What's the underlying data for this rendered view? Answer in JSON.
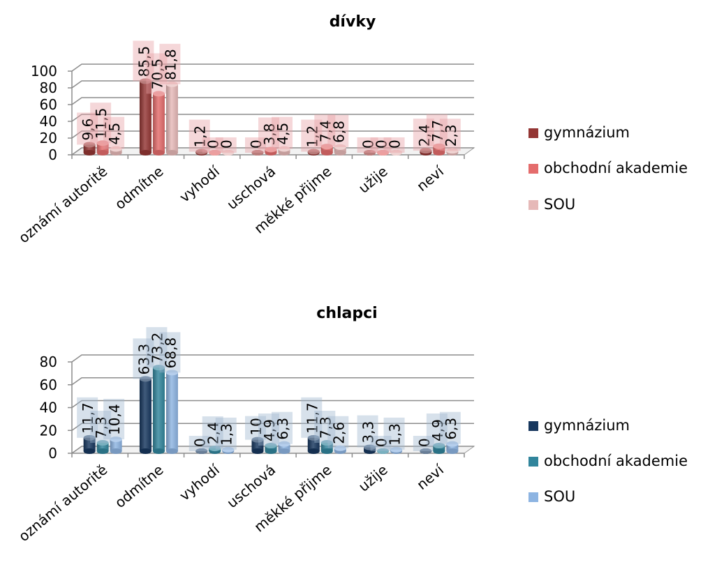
{
  "chart_data": [
    {
      "type": "bar",
      "title": "dívky",
      "categories": [
        "oznámí autoritě",
        "odmítne",
        "vyhodí",
        "uschová",
        "měkké přijme",
        "užije",
        "neví"
      ],
      "series": [
        {
          "name": "gymnázium",
          "values": [
            9.6,
            85.5,
            1.2,
            0,
            1.2,
            0,
            2.4
          ],
          "labels": [
            "9,6",
            "85,5",
            "1,2",
            "0",
            "1,2",
            "0",
            "2,4"
          ],
          "color": "#943634"
        },
        {
          "name": "obchodní akademie",
          "values": [
            11.5,
            70.5,
            0,
            3.8,
            7.4,
            0,
            7.7
          ],
          "labels": [
            "11,5",
            "70,5",
            "0",
            "3,8",
            "7,4",
            "0",
            "7,7"
          ],
          "color": "#E46C6C"
        },
        {
          "name": "SOU",
          "values": [
            4.5,
            81.8,
            0,
            4.5,
            6.8,
            0,
            2.3
          ],
          "labels": [
            "4,5",
            "81,8",
            "0",
            "4,5",
            "6,8",
            "0",
            "2,3"
          ],
          "color": "#E6B9B8"
        }
      ],
      "ylim": [
        0,
        100
      ],
      "yticks": [
        "0",
        "20",
        "40",
        "60",
        "80",
        "100"
      ],
      "label_fill": "#E8A0A4",
      "legend_position": "right",
      "grid": true
    },
    {
      "type": "bar",
      "title": "chlapci",
      "categories": [
        "oznámí autoritě",
        "odmítne",
        "vyhodí",
        "uschová",
        "měkké přijme",
        "užije",
        "neví"
      ],
      "series": [
        {
          "name": "gymnázium",
          "values": [
            11.7,
            63.3,
            0,
            10,
            11.7,
            3.3,
            0
          ],
          "labels": [
            "11,7",
            "63,3",
            "0",
            "10",
            "11,7",
            "3,3",
            "0"
          ],
          "color": "#17375E"
        },
        {
          "name": "obchodní akademie",
          "values": [
            7.3,
            73.2,
            2.4,
            4.9,
            7.3,
            0,
            4.9
          ],
          "labels": [
            "7,3",
            "73,2",
            "2,4",
            "4,9",
            "7,3",
            "0",
            "4,9"
          ],
          "color": "#31859C"
        },
        {
          "name": "SOU",
          "values": [
            10.4,
            68.8,
            1.3,
            6.3,
            2.6,
            1.3,
            6.3
          ],
          "labels": [
            "10,4",
            "68,8",
            "1,3",
            "6,3",
            "2,6",
            "1,3",
            "6,3"
          ],
          "color": "#8DB4E2"
        }
      ],
      "ylim": [
        0,
        80
      ],
      "yticks": [
        "0",
        "20",
        "40",
        "60",
        "80"
      ],
      "label_fill": "#9FB8D0",
      "legend_position": "right",
      "grid": true
    }
  ]
}
